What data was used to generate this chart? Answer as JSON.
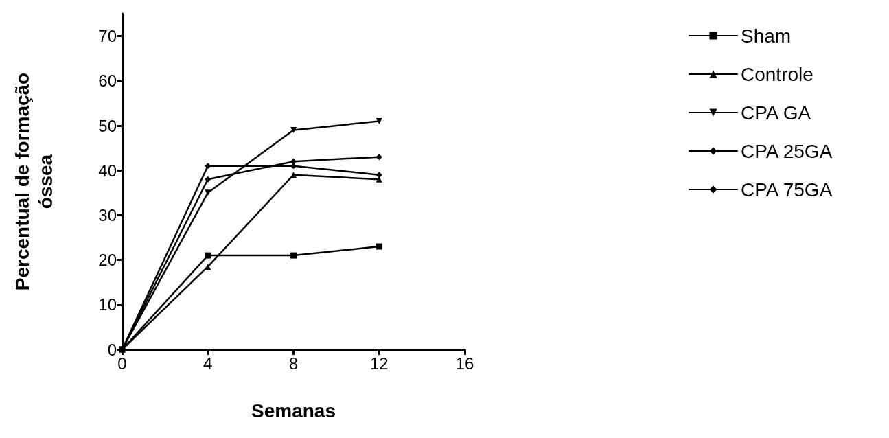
{
  "chart_data": {
    "type": "line",
    "xlabel": "Semanas",
    "ylabel": "Percentual de formação\nóssea",
    "x": [
      0,
      4,
      8,
      12
    ],
    "series": [
      {
        "name": "Sham",
        "color": "#000000",
        "marker": "square",
        "values": [
          0,
          21,
          21,
          23
        ]
      },
      {
        "name": "Controle",
        "color": "#000000",
        "marker": "triangle",
        "values": [
          0,
          18.5,
          39,
          38
        ]
      },
      {
        "name": "CPA GA",
        "color": "#000000",
        "marker": "triangle-down",
        "values": [
          0,
          35,
          49,
          51
        ]
      },
      {
        "name": "CPA 25GA",
        "color": "#000000",
        "marker": "diamond",
        "values": [
          0,
          38,
          42,
          43
        ]
      },
      {
        "name": "CPA 75GA",
        "color": "#000000",
        "marker": "diamond",
        "values": [
          0,
          41,
          41,
          39
        ]
      }
    ],
    "xlim": [
      0,
      16
    ],
    "xticks": [
      0,
      4,
      8,
      12,
      16
    ],
    "ylim": [
      0,
      75
    ],
    "yticks": [
      0,
      10,
      20,
      30,
      40,
      50,
      60,
      70
    ],
    "grid": false,
    "legend": "right",
    "line_style": "solid"
  }
}
